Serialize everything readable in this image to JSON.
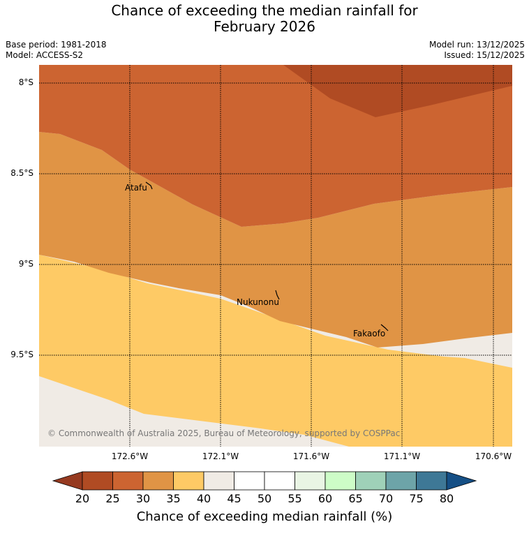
{
  "title_line1": "Chance of exceeding the median rainfall for",
  "title_line2": "February 2026",
  "meta": {
    "base_period": "Base period: 1981-2018",
    "model": "Model: ACCESS-S2",
    "model_run": "Model run: 13/12/2025",
    "issued": "Issued: 15/12/2025"
  },
  "axes": {
    "lat_labels": [
      "8°S",
      "8.5°S",
      "9°S",
      "9.5°S"
    ],
    "lon_labels": [
      "172.6°W",
      "172.1°W",
      "171.6°W",
      "171.1°W",
      "170.6°W"
    ]
  },
  "places": [
    "Atafu",
    "Nukunonu",
    "Fakaofo"
  ],
  "copyright": "© Commonwealth of Australia 2025, Bureau of Meteorology, supported by COSPPac",
  "colorbar": {
    "ticks": [
      "20",
      "25",
      "30",
      "35",
      "40",
      "45",
      "50",
      "55",
      "60",
      "65",
      "70",
      "75",
      "80"
    ],
    "colors": [
      "#b04b23",
      "#cc6431",
      "#e09445",
      "#feca65",
      "#f0ebe5",
      "#ffffff",
      "#ffffff",
      "#e9f5e4",
      "#cdfcc7",
      "#9fd1b8",
      "#6da4a8",
      "#3e7896"
    ],
    "low_extend_color": "#963a20",
    "high_extend_color": "#154f85",
    "title": "Chance of exceeding median rainfall (%)"
  },
  "map_colors": {
    "band_20_25": "#b04b23",
    "band_25_30": "#cc6431",
    "band_30_35": "#e09445",
    "band_35_40": "#feca65",
    "band_40_45": "#f0ebe5"
  }
}
